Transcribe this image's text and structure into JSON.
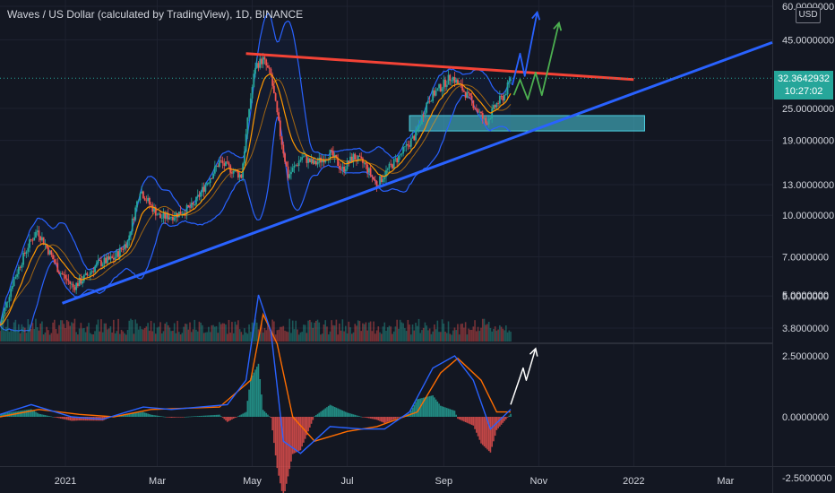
{
  "header": {
    "title": "Waves / US Dollar (calculated by TradingView), 1D, BINANCE",
    "currency": "USD"
  },
  "price_tag": {
    "price": "32.3642932",
    "countdown": "10:27:02"
  },
  "colors": {
    "background": "#131722",
    "bull": "#26a69a",
    "bear": "#ef5350",
    "resistance": "#f44336",
    "support": "#2962ff",
    "bollinger": "#2962ff",
    "ema": "#ff9800",
    "projection_blue": "#2962ff",
    "projection_green": "#4caf50",
    "zone": "#4dd0e1",
    "macd": "#2962ff",
    "signal": "#ff6d00"
  },
  "chart_data": [
    {
      "type": "candlestick",
      "title": "Waves / US Dollar (calculated by TradingView), 1D, BINANCE",
      "scale": "log",
      "y_ticks": [
        "60.0000000",
        "45.0000000",
        "25.0000000",
        "19.0000000",
        "13.0000000",
        "10.0000000",
        "7.0000000",
        "5.0000000",
        "3.8000000"
      ],
      "y_tick_values": [
        60,
        45,
        25,
        19,
        13,
        10,
        7,
        5,
        3.8
      ],
      "x_ticks": [
        "2021",
        "Mar",
        "May",
        "Jul",
        "Sep",
        "Nov",
        "2022",
        "Mar"
      ],
      "x_tick_dates": [
        "2021-01-01",
        "2021-03-01",
        "2021-05-01",
        "2021-07-01",
        "2021-09-01",
        "2021-11-01",
        "2022-01-01",
        "2022-03-01"
      ],
      "x_range": [
        "2020-11-20",
        "2022-03-31"
      ],
      "last_price": 32.3642932,
      "close_path": [
        [
          "2020-11-20",
          3.9
        ],
        [
          "2020-11-28",
          5.6
        ],
        [
          "2020-12-08",
          7.7
        ],
        [
          "2020-12-14",
          8.8
        ],
        [
          "2020-12-20",
          7.6
        ],
        [
          "2020-12-28",
          6.2
        ],
        [
          "2021-01-06",
          5.4
        ],
        [
          "2021-01-14",
          5.9
        ],
        [
          "2021-01-22",
          6.6
        ],
        [
          "2021-02-01",
          6.9
        ],
        [
          "2021-02-10",
          8.0
        ],
        [
          "2021-02-18",
          12.5
        ],
        [
          "2021-02-24",
          11.0
        ],
        [
          "2021-03-03",
          9.8
        ],
        [
          "2021-03-12",
          10.0
        ],
        [
          "2021-03-24",
          10.8
        ],
        [
          "2021-04-01",
          13.0
        ],
        [
          "2021-04-10",
          15.8
        ],
        [
          "2021-04-16",
          15.0
        ],
        [
          "2021-04-24",
          14.0
        ],
        [
          "2021-04-29",
          25.0
        ],
        [
          "2021-05-03",
          36.0
        ],
        [
          "2021-05-08",
          38.0
        ],
        [
          "2021-05-13",
          33.0
        ],
        [
          "2021-05-19",
          20.0
        ],
        [
          "2021-05-24",
          14.0
        ],
        [
          "2021-06-02",
          16.5
        ],
        [
          "2021-06-10",
          15.5
        ],
        [
          "2021-06-20",
          17.0
        ],
        [
          "2021-06-28",
          14.8
        ],
        [
          "2021-07-05",
          16.5
        ],
        [
          "2021-07-12",
          15.5
        ],
        [
          "2021-07-20",
          13.0
        ],
        [
          "2021-07-28",
          15.0
        ],
        [
          "2021-08-05",
          17.0
        ],
        [
          "2021-08-14",
          20.0
        ],
        [
          "2021-08-22",
          27.0
        ],
        [
          "2021-08-30",
          30.0
        ],
        [
          "2021-09-06",
          33.0
        ],
        [
          "2021-09-14",
          29.0
        ],
        [
          "2021-09-22",
          25.0
        ],
        [
          "2021-09-28",
          22.0
        ],
        [
          "2021-10-05",
          26.0
        ],
        [
          "2021-10-10",
          28.0
        ],
        [
          "2021-10-14",
          32.36
        ]
      ],
      "resistance_line": [
        [
          "2021-04-27",
          40.0
        ],
        [
          "2022-01-01",
          32.0
        ]
      ],
      "support_line": [
        [
          "2020-12-30",
          4.7
        ],
        [
          "2022-03-31",
          44.0
        ]
      ],
      "support_zone": {
        "from": "2021-08-10",
        "to": "2022-01-08",
        "low": 20.6,
        "high": 23.5
      },
      "projections": [
        {
          "color": "blue",
          "points": [
            [
              "2021-10-15",
              30.5
            ],
            [
              "2021-10-20",
              40.0
            ],
            [
              "2021-10-23",
              33.0
            ],
            [
              "2021-10-31",
              57.0
            ]
          ]
        },
        {
          "color": "green",
          "points": [
            [
              "2021-10-16",
              28.0
            ],
            [
              "2021-10-20",
              32.0
            ],
            [
              "2021-10-25",
              27.0
            ],
            [
              "2021-10-30",
              34.0
            ],
            [
              "2021-11-03",
              28.0
            ],
            [
              "2021-11-14",
              52.0
            ]
          ]
        }
      ]
    },
    {
      "type": "line",
      "title": "MACD",
      "y_ticks": [
        "5.0000000",
        "2.5000000",
        "0.0000000",
        "-2.5000000"
      ],
      "y_tick_values": [
        5,
        2.5,
        0,
        -2.5
      ],
      "series": [
        {
          "points": [
            [
              "2020-11-20",
              0.1
            ],
            [
              "2020-12-10",
              0.5
            ],
            [
              "2021-01-05",
              0.0
            ],
            [
              "2021-01-25",
              -0.1
            ],
            [
              "2021-02-20",
              0.4
            ],
            [
              "2021-03-10",
              0.3
            ],
            [
              "2021-04-15",
              0.5
            ],
            [
              "2021-04-27",
              1.5
            ],
            [
              "2021-05-05",
              5.0
            ],
            [
              "2021-05-13",
              3.5
            ],
            [
              "2021-05-21",
              -1.0
            ],
            [
              "2021-06-01",
              -1.5
            ],
            [
              "2021-06-20",
              -0.4
            ],
            [
              "2021-07-10",
              -0.5
            ],
            [
              "2021-07-25",
              -0.5
            ],
            [
              "2021-08-10",
              0.2
            ],
            [
              "2021-08-25",
              2.0
            ],
            [
              "2021-09-08",
              2.5
            ],
            [
              "2021-09-20",
              1.5
            ],
            [
              "2021-10-01",
              -0.5
            ],
            [
              "2021-10-14",
              0.3
            ]
          ]
        },
        {
          "points": [
            [
              "2020-11-20",
              0.0
            ],
            [
              "2020-12-15",
              0.3
            ],
            [
              "2021-01-10",
              0.1
            ],
            [
              "2021-02-01",
              0.0
            ],
            [
              "2021-02-25",
              0.3
            ],
            [
              "2021-04-10",
              0.4
            ],
            [
              "2021-04-30",
              1.5
            ],
            [
              "2021-05-08",
              4.2
            ],
            [
              "2021-05-17",
              3.0
            ],
            [
              "2021-05-27",
              0.0
            ],
            [
              "2021-06-10",
              -1.0
            ],
            [
              "2021-07-01",
              -0.6
            ],
            [
              "2021-07-20",
              -0.4
            ],
            [
              "2021-08-15",
              0.2
            ],
            [
              "2021-08-30",
              1.8
            ],
            [
              "2021-09-10",
              2.4
            ],
            [
              "2021-09-25",
              1.5
            ],
            [
              "2021-10-05",
              0.2
            ],
            [
              "2021-10-14",
              0.2
            ]
          ]
        }
      ],
      "projection": [
        [
          "2021-10-14",
          0.5
        ],
        [
          "2021-10-22",
          2.0
        ],
        [
          "2021-10-24",
          1.5
        ],
        [
          "2021-10-30",
          2.8
        ]
      ]
    }
  ]
}
